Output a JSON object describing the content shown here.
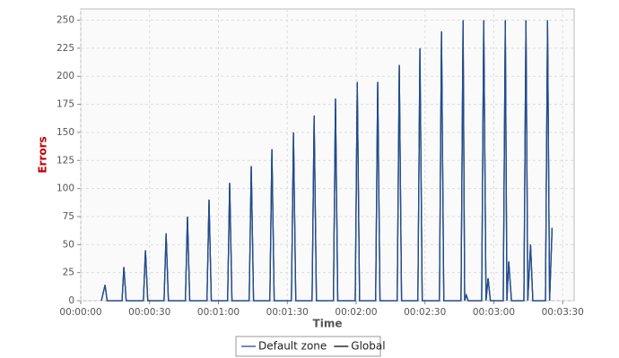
{
  "chart_data": {
    "type": "line",
    "xlabel": "Time",
    "ylabel": "Errors",
    "x": [
      9,
      10.6,
      11.5,
      18,
      18.8,
      19.8,
      27.3,
      28.2,
      29.2,
      36.3,
      37.2,
      38.2,
      45.6,
      46.5,
      47.5,
      55,
      55.9,
      56.9,
      64,
      64.9,
      65.9,
      73.4,
      74.3,
      75.3,
      82.4,
      83.3,
      84.3,
      91.8,
      92.7,
      93.7,
      100.8,
      101.7,
      102.7,
      110.1,
      111,
      112,
      119.6,
      120.5,
      121.5,
      128.5,
      129.4,
      130.4,
      137.9,
      138.8,
      139.8,
      146.9,
      147.8,
      148.8,
      156.3,
      157.2,
      158.2,
      165.7,
      166.6,
      167.3,
      168,
      168.8,
      174.7,
      175.6,
      176.6,
      177.5,
      178.5,
      184.1,
      185,
      185.7,
      186.5,
      187.7,
      193.1,
      194,
      194.8,
      196,
      197,
      202.5,
      203.4,
      204.3,
      205.4
    ],
    "series": [
      {
        "name": "Default zone",
        "color": "#1f4e96",
        "values": [
          0,
          14,
          0,
          0,
          30,
          0,
          0,
          45,
          0,
          0,
          60,
          0,
          0,
          75,
          0,
          0,
          90,
          0,
          0,
          105,
          0,
          0,
          120,
          0,
          0,
          135,
          0,
          0,
          150,
          0,
          0,
          165,
          0,
          0,
          180,
          0,
          0,
          195,
          0,
          0,
          195,
          0,
          0,
          210,
          0,
          0,
          225,
          0,
          0,
          240,
          0,
          0,
          250,
          0,
          5,
          0,
          0,
          250,
          0,
          20,
          0,
          0,
          250,
          0,
          35,
          0,
          0,
          250,
          0,
          50,
          0,
          0,
          250,
          0,
          65
        ]
      },
      {
        "name": "Global",
        "color": "#000000",
        "values": [
          0,
          14,
          0,
          0,
          30,
          0,
          0,
          45,
          0,
          0,
          60,
          0,
          0,
          75,
          0,
          0,
          90,
          0,
          0,
          105,
          0,
          0,
          120,
          0,
          0,
          135,
          0,
          0,
          150,
          0,
          0,
          165,
          0,
          0,
          180,
          0,
          0,
          195,
          0,
          0,
          195,
          0,
          0,
          210,
          0,
          0,
          225,
          0,
          0,
          240,
          0,
          0,
          250,
          0,
          5,
          0,
          0,
          250,
          0,
          20,
          0,
          0,
          250,
          0,
          35,
          0,
          0,
          250,
          0,
          50,
          0,
          0,
          250,
          0,
          65
        ]
      }
    ],
    "xlim": [
      0,
      215
    ],
    "ylim": [
      0,
      260
    ],
    "xticks": [
      {
        "value": 0,
        "label": "00:00:00"
      },
      {
        "value": 30,
        "label": "00:00:30"
      },
      {
        "value": 60,
        "label": "00:01:00"
      },
      {
        "value": 90,
        "label": "00:01:30"
      },
      {
        "value": 120,
        "label": "00:02:00"
      },
      {
        "value": 150,
        "label": "00:02:30"
      },
      {
        "value": 180,
        "label": "00:03:00"
      },
      {
        "value": 210,
        "label": "00:03:30"
      }
    ],
    "yticks": [
      0,
      25,
      50,
      75,
      100,
      125,
      150,
      175,
      200,
      225,
      250
    ],
    "grid": true,
    "legend": "bottom"
  }
}
